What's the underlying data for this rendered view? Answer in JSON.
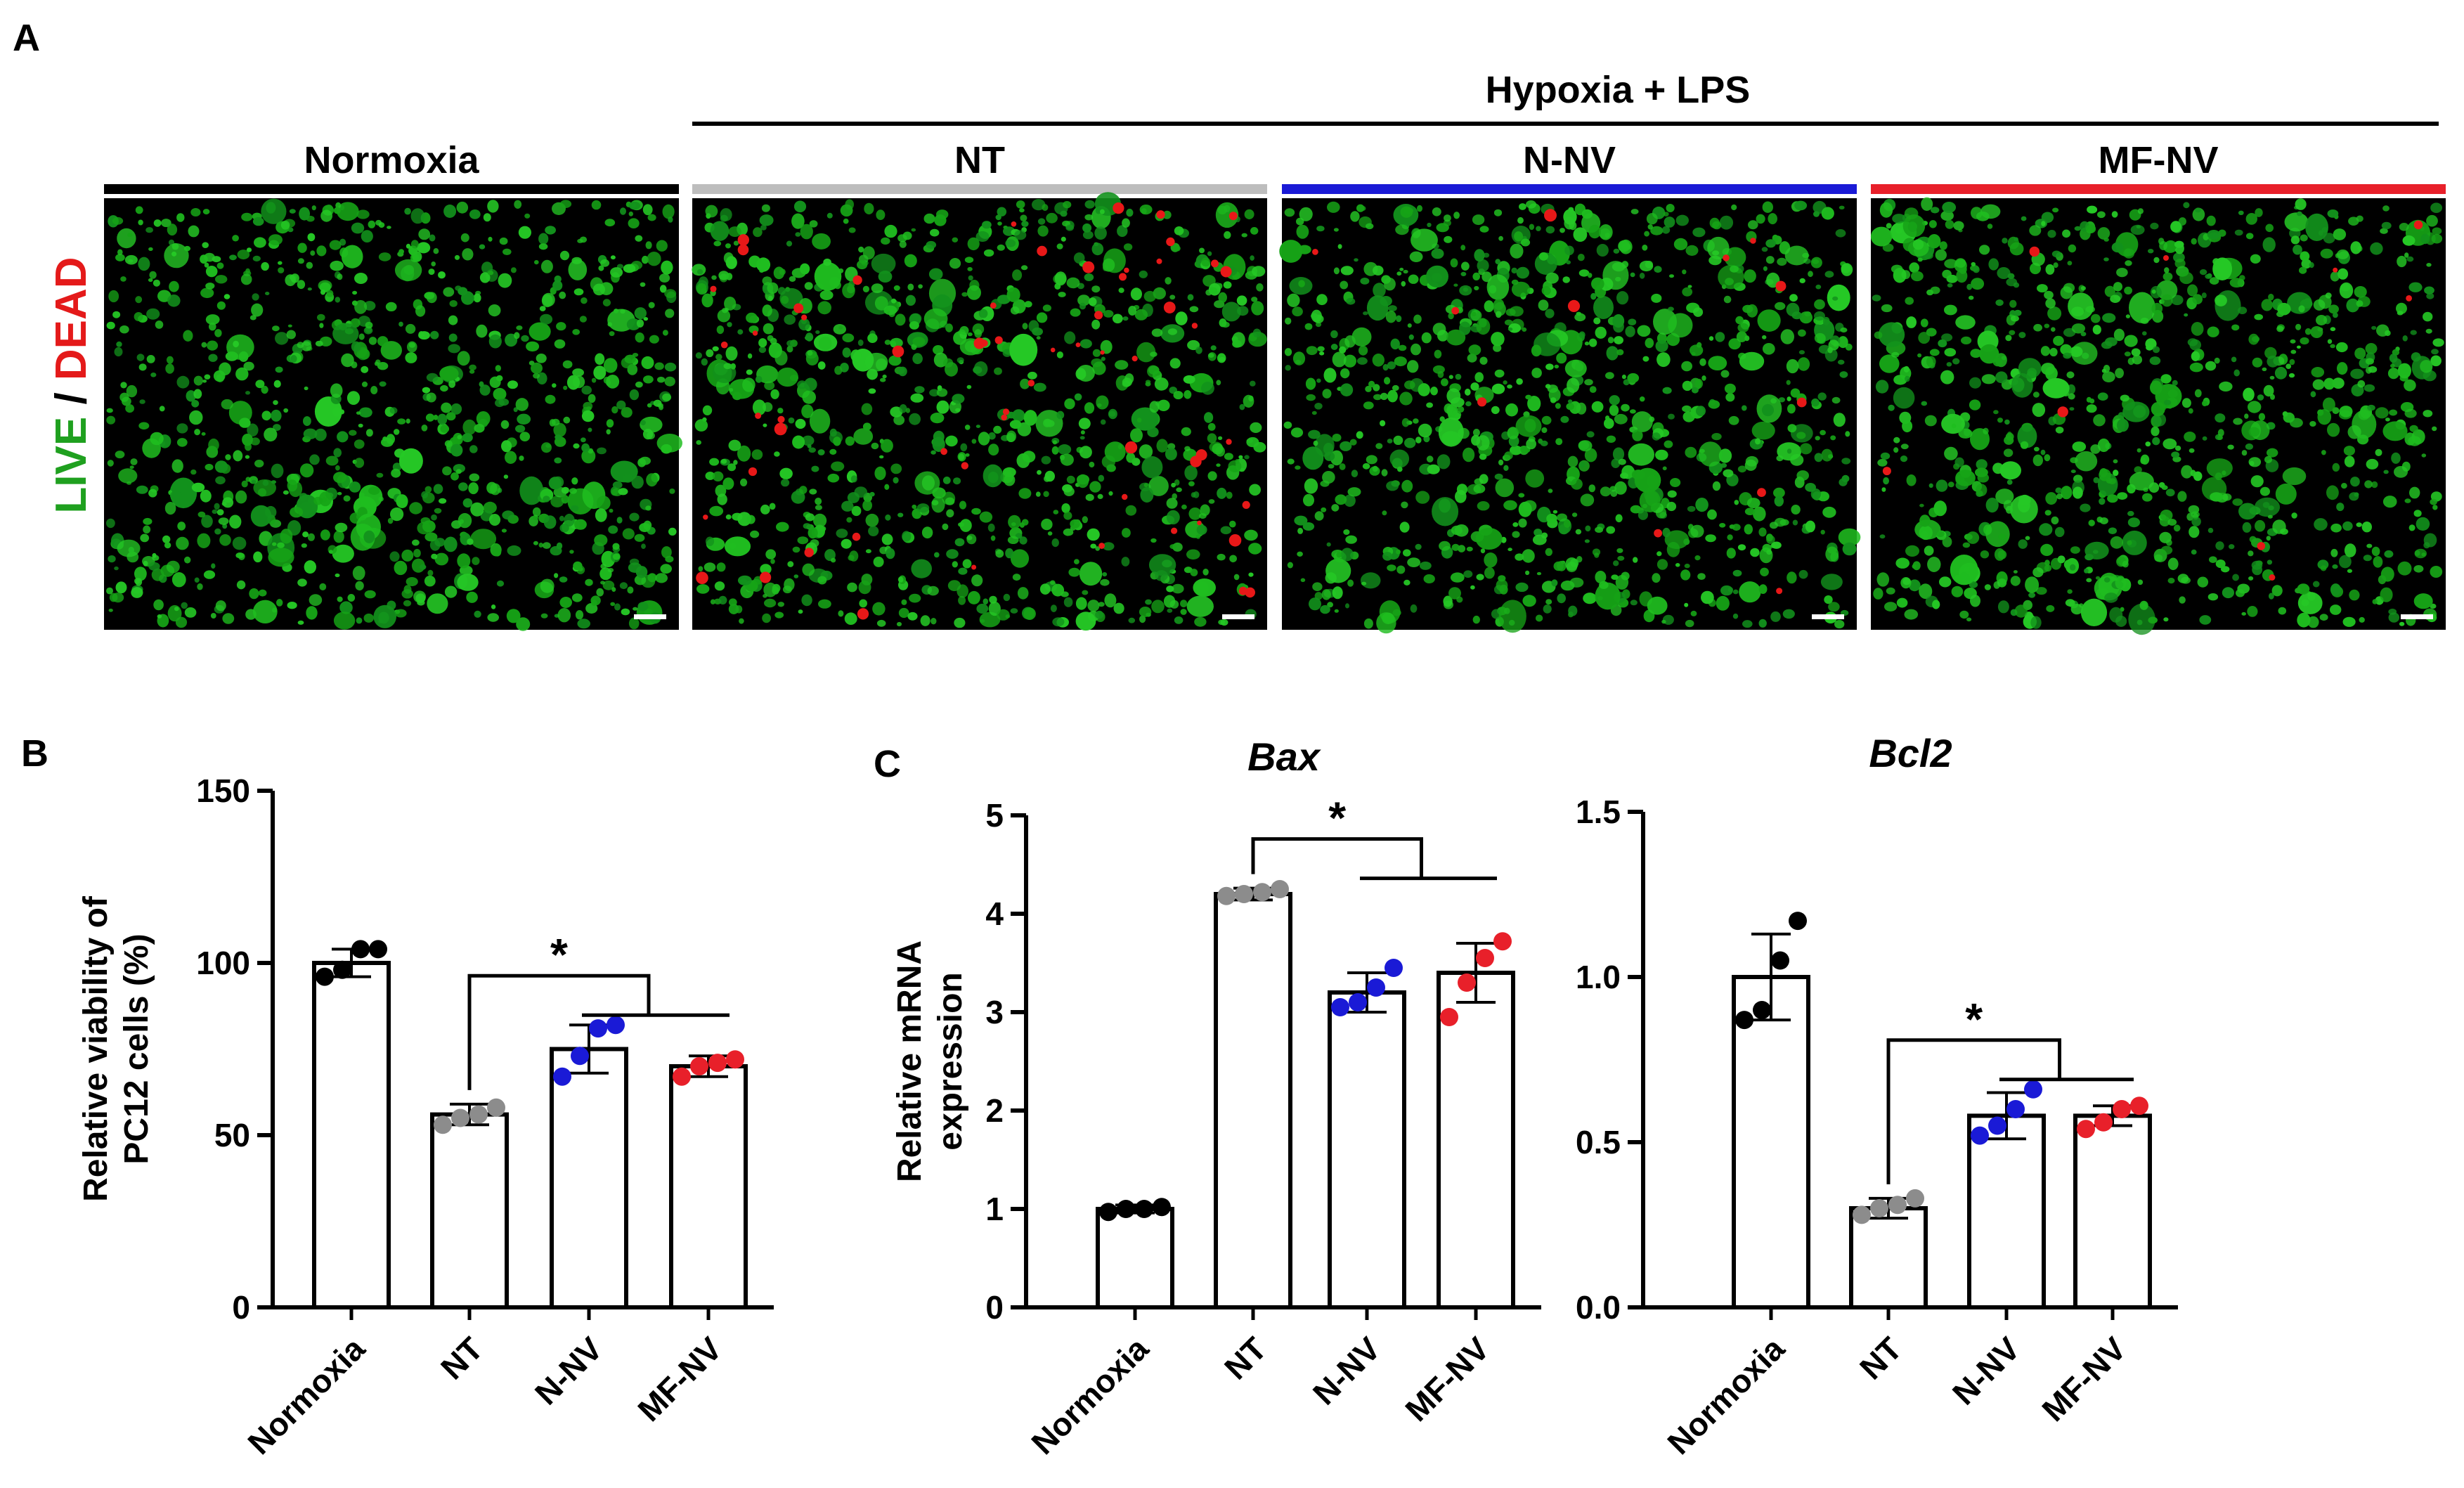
{
  "panel_a": {
    "letter": "A",
    "group_header": "Hypoxia + LPS",
    "y_label_live": "LIVE",
    "y_label_sep": " / ",
    "y_label_dead": "DEAD",
    "live_color": "#1fa01f",
    "dead_color": "#e41a1a",
    "panels": [
      {
        "label": "Normoxia",
        "bar_color": "#000000",
        "dead_density": 0.0
      },
      {
        "label": "NT",
        "bar_color": "#bdbdbd",
        "dead_density": 0.1
      },
      {
        "label": "N-NV",
        "bar_color": "#1a1ad6",
        "dead_density": 0.02
      },
      {
        "label": "MF-NV",
        "bar_color": "#e8202a",
        "dead_density": 0.015
      }
    ]
  },
  "group_colors": {
    "Normoxia": "#000000",
    "NT": "#8c8c8c",
    "N-NV": "#1a1ad6",
    "MF-NV": "#e8202a"
  },
  "chart_data": [
    {
      "panel_letter": "B",
      "type": "bar",
      "title": "",
      "ylabel_lines": [
        "Relative viability of",
        "PC12  cells (%)"
      ],
      "categories": [
        "Normoxia",
        "NT",
        "N-NV",
        "MF-NV"
      ],
      "values": [
        100,
        56,
        75,
        70
      ],
      "errors": [
        4,
        3,
        7,
        3
      ],
      "points": [
        [
          96,
          98,
          104,
          104
        ],
        [
          53,
          55,
          56,
          58
        ],
        [
          67,
          73,
          81,
          82
        ],
        [
          67,
          70,
          71,
          72
        ]
      ],
      "ylim": [
        0,
        150
      ],
      "yticks": [
        "0",
        "50",
        "100",
        "150"
      ],
      "yticks_values": [
        0,
        50,
        100,
        150
      ],
      "significance": "*"
    },
    {
      "panel_letter": "C",
      "type": "bar",
      "title": "Bax",
      "ylabel_lines": [
        "Relative mRNA",
        "expression"
      ],
      "categories": [
        "Normoxia",
        "NT",
        "N-NV",
        "MF-NV"
      ],
      "values": [
        1.0,
        4.2,
        3.2,
        3.4
      ],
      "errors": [
        0.04,
        0.06,
        0.2,
        0.3
      ],
      "points": [
        [
          0.97,
          1.0,
          1.0,
          1.02
        ],
        [
          4.18,
          4.2,
          4.22,
          4.25
        ],
        [
          3.05,
          3.1,
          3.25,
          3.45
        ],
        [
          2.95,
          3.3,
          3.55,
          3.72
        ]
      ],
      "ylim": [
        0,
        5
      ],
      "yticks": [
        "0",
        "1",
        "2",
        "3",
        "4",
        "5"
      ],
      "yticks_values": [
        0,
        1,
        2,
        3,
        4,
        5
      ],
      "significance": "*"
    },
    {
      "panel_letter": "",
      "type": "bar",
      "title": "Bcl2",
      "ylabel_lines": [],
      "categories": [
        "Normoxia",
        "NT",
        "N-NV",
        "MF-NV"
      ],
      "values": [
        1.0,
        0.3,
        0.58,
        0.58
      ],
      "errors": [
        0.13,
        0.03,
        0.07,
        0.03
      ],
      "points": [
        [
          0.87,
          0.9,
          1.05,
          1.17
        ],
        [
          0.28,
          0.3,
          0.31,
          0.33
        ],
        [
          0.52,
          0.55,
          0.6,
          0.66
        ],
        [
          0.54,
          0.56,
          0.6,
          0.61
        ]
      ],
      "ylim": [
        0,
        1.5
      ],
      "yticks": [
        "0.0",
        "0.5",
        "1.0",
        "1.5"
      ],
      "yticks_values": [
        0,
        0.5,
        1.0,
        1.5
      ],
      "significance": "*"
    }
  ]
}
